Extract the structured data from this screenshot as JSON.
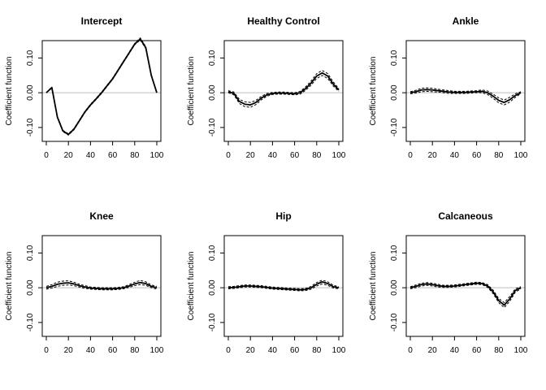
{
  "chart_data": [
    {
      "type": "line",
      "title": "Intercept",
      "xlabel": "",
      "ylabel": "Coefficient function",
      "xlim": [
        0,
        100
      ],
      "ylim": [
        -0.14,
        0.15
      ],
      "xticks": [
        "0",
        "20",
        "40",
        "60",
        "80",
        "100"
      ],
      "yticks": [
        "-0.10",
        "0.00",
        "0.10"
      ],
      "reference_line": 0,
      "x": [
        0,
        5,
        10,
        15,
        20,
        25,
        30,
        35,
        40,
        45,
        50,
        55,
        60,
        65,
        70,
        75,
        80,
        85,
        90,
        95,
        100
      ],
      "series": [
        {
          "values": [
            0.0,
            0.015,
            -0.07,
            -0.11,
            -0.12,
            -0.105,
            -0.08,
            -0.055,
            -0.035,
            -0.018,
            0.0,
            0.02,
            0.04,
            0.065,
            0.09,
            0.115,
            0.14,
            0.155,
            0.13,
            0.05,
            0.0
          ]
        },
        {
          "values": [
            0.0,
            0.013,
            -0.072,
            -0.112,
            -0.122,
            -0.107,
            -0.082,
            -0.057,
            -0.037,
            -0.02,
            -0.002,
            0.018,
            0.038,
            0.063,
            0.088,
            0.113,
            0.138,
            0.152,
            0.127,
            0.048,
            -0.002
          ]
        },
        {
          "values": [
            0.0,
            0.017,
            -0.068,
            -0.108,
            -0.118,
            -0.103,
            -0.078,
            -0.053,
            -0.033,
            -0.016,
            0.002,
            0.022,
            0.042,
            0.067,
            0.092,
            0.117,
            0.142,
            0.158,
            0.133,
            0.052,
            0.002
          ]
        }
      ]
    },
    {
      "type": "line",
      "title": "Healthy Control",
      "xlabel": "",
      "ylabel": "Coefficient function",
      "xlim": [
        0,
        100
      ],
      "ylim": [
        -0.14,
        0.15
      ],
      "xticks": [
        "0",
        "20",
        "40",
        "60",
        "80",
        "100"
      ],
      "yticks": [
        "-0.10",
        "0.00",
        "0.10"
      ],
      "reference_line": 0,
      "x": [
        0,
        5,
        10,
        15,
        20,
        25,
        30,
        35,
        40,
        45,
        50,
        55,
        60,
        65,
        70,
        75,
        80,
        85,
        90,
        95,
        100
      ],
      "series": [
        {
          "values": [
            0.003,
            -0.002,
            -0.025,
            -0.033,
            -0.035,
            -0.028,
            -0.015,
            -0.006,
            -0.002,
            -0.001,
            -0.001,
            -0.002,
            -0.003,
            0.0,
            0.012,
            0.028,
            0.048,
            0.057,
            0.048,
            0.025,
            0.008
          ]
        },
        {
          "values": [
            0.0,
            -0.006,
            -0.031,
            -0.04,
            -0.042,
            -0.034,
            -0.02,
            -0.01,
            -0.005,
            -0.004,
            -0.004,
            -0.005,
            -0.006,
            -0.004,
            0.007,
            0.022,
            0.041,
            0.05,
            0.041,
            0.019,
            0.004
          ]
        },
        {
          "values": [
            0.006,
            0.002,
            -0.019,
            -0.026,
            -0.028,
            -0.022,
            -0.01,
            -0.002,
            0.001,
            0.002,
            0.002,
            0.001,
            0.0,
            0.004,
            0.017,
            0.034,
            0.055,
            0.064,
            0.055,
            0.031,
            0.012
          ]
        }
      ]
    },
    {
      "type": "line",
      "title": "Ankle",
      "xlabel": "",
      "ylabel": "Coefficient function",
      "xlim": [
        0,
        100
      ],
      "ylim": [
        -0.14,
        0.15
      ],
      "xticks": [
        "0",
        "20",
        "40",
        "60",
        "80",
        "100"
      ],
      "yticks": [
        "-0.10",
        "0.00",
        "0.10"
      ],
      "reference_line": 0,
      "x": [
        0,
        5,
        10,
        15,
        20,
        25,
        30,
        35,
        40,
        45,
        50,
        55,
        60,
        65,
        70,
        75,
        80,
        85,
        90,
        95,
        100
      ],
      "series": [
        {
          "values": [
            0.0,
            0.003,
            0.008,
            0.009,
            0.008,
            0.006,
            0.004,
            0.002,
            0.001,
            0.001,
            0.001,
            0.002,
            0.003,
            0.004,
            0.0,
            -0.01,
            -0.022,
            -0.028,
            -0.02,
            -0.008,
            0.0
          ]
        },
        {
          "values": [
            -0.003,
            -0.001,
            0.003,
            0.004,
            0.003,
            0.002,
            0.0,
            -0.002,
            -0.002,
            -0.002,
            -0.002,
            -0.001,
            0.0,
            0.0,
            -0.005,
            -0.016,
            -0.029,
            -0.035,
            -0.027,
            -0.013,
            -0.003
          ]
        },
        {
          "values": [
            0.003,
            0.007,
            0.013,
            0.014,
            0.013,
            0.01,
            0.008,
            0.006,
            0.004,
            0.004,
            0.004,
            0.005,
            0.006,
            0.008,
            0.005,
            -0.004,
            -0.015,
            -0.021,
            -0.013,
            -0.003,
            0.003
          ]
        }
      ]
    },
    {
      "type": "line",
      "title": "Knee",
      "xlabel": "",
      "ylabel": "Coefficient function",
      "xlim": [
        0,
        100
      ],
      "ylim": [
        -0.14,
        0.15
      ],
      "xticks": [
        "0",
        "20",
        "40",
        "60",
        "80",
        "100"
      ],
      "yticks": [
        "-0.10",
        "0.00",
        "0.10"
      ],
      "reference_line": 0,
      "x": [
        0,
        5,
        10,
        15,
        20,
        25,
        30,
        35,
        40,
        45,
        50,
        55,
        60,
        65,
        70,
        75,
        80,
        85,
        90,
        95,
        100
      ],
      "series": [
        {
          "values": [
            0.0,
            0.004,
            0.01,
            0.013,
            0.014,
            0.011,
            0.006,
            0.002,
            -0.001,
            -0.002,
            -0.003,
            -0.003,
            -0.003,
            -0.002,
            0.0,
            0.005,
            0.011,
            0.015,
            0.012,
            0.004,
            0.0
          ]
        },
        {
          "values": [
            -0.004,
            -0.001,
            0.004,
            0.007,
            0.008,
            0.006,
            0.002,
            -0.002,
            -0.004,
            -0.005,
            -0.006,
            -0.006,
            -0.006,
            -0.005,
            -0.003,
            0.001,
            0.006,
            0.009,
            0.007,
            0.0,
            -0.004
          ]
        },
        {
          "values": [
            0.004,
            0.009,
            0.016,
            0.019,
            0.02,
            0.016,
            0.01,
            0.006,
            0.002,
            0.001,
            0.0,
            0.0,
            0.0,
            0.001,
            0.003,
            0.009,
            0.016,
            0.021,
            0.017,
            0.008,
            0.004
          ]
        }
      ]
    },
    {
      "type": "line",
      "title": "Hip",
      "xlabel": "",
      "ylabel": "Coefficient function",
      "xlim": [
        0,
        100
      ],
      "ylim": [
        -0.14,
        0.15
      ],
      "xticks": [
        "0",
        "20",
        "40",
        "60",
        "80",
        "100"
      ],
      "yticks": [
        "-0.10",
        "0.00",
        "0.10"
      ],
      "reference_line": 0,
      "x": [
        0,
        5,
        10,
        15,
        20,
        25,
        30,
        35,
        40,
        45,
        50,
        55,
        60,
        65,
        70,
        75,
        80,
        85,
        90,
        95,
        100
      ],
      "series": [
        {
          "values": [
            0.0,
            0.001,
            0.003,
            0.005,
            0.005,
            0.004,
            0.003,
            0.001,
            -0.001,
            -0.002,
            -0.003,
            -0.004,
            -0.005,
            -0.006,
            -0.005,
            0.0,
            0.01,
            0.017,
            0.012,
            0.003,
            0.0
          ]
        },
        {
          "values": [
            -0.003,
            -0.002,
            0.0,
            0.002,
            0.002,
            0.001,
            0.0,
            -0.002,
            -0.004,
            -0.005,
            -0.006,
            -0.007,
            -0.008,
            -0.009,
            -0.008,
            -0.004,
            0.005,
            0.011,
            0.007,
            -0.001,
            -0.003
          ]
        },
        {
          "values": [
            0.003,
            0.004,
            0.006,
            0.008,
            0.008,
            0.007,
            0.006,
            0.004,
            0.002,
            0.001,
            0.0,
            -0.001,
            -0.002,
            -0.003,
            -0.002,
            0.004,
            0.015,
            0.022,
            0.017,
            0.007,
            0.003
          ]
        }
      ]
    },
    {
      "type": "line",
      "title": "Calcaneous",
      "xlabel": "",
      "ylabel": "Coefficient function",
      "xlim": [
        0,
        100
      ],
      "ylim": [
        -0.14,
        0.15
      ],
      "xticks": [
        "0",
        "20",
        "40",
        "60",
        "80",
        "100"
      ],
      "yticks": [
        "-0.10",
        "0.00",
        "0.10"
      ],
      "reference_line": 0,
      "x": [
        0,
        5,
        10,
        15,
        20,
        25,
        30,
        35,
        40,
        45,
        50,
        55,
        60,
        65,
        70,
        75,
        80,
        85,
        90,
        95,
        100
      ],
      "series": [
        {
          "values": [
            0.0,
            0.004,
            0.009,
            0.011,
            0.009,
            0.006,
            0.004,
            0.004,
            0.005,
            0.007,
            0.009,
            0.011,
            0.013,
            0.012,
            0.005,
            -0.012,
            -0.037,
            -0.05,
            -0.032,
            -0.008,
            0.0
          ]
        },
        {
          "values": [
            -0.003,
            0.0,
            0.005,
            0.007,
            0.005,
            0.002,
            0.001,
            0.001,
            0.002,
            0.004,
            0.006,
            0.008,
            0.01,
            0.009,
            0.001,
            -0.017,
            -0.043,
            -0.057,
            -0.039,
            -0.013,
            -0.003
          ]
        },
        {
          "values": [
            0.003,
            0.008,
            0.013,
            0.015,
            0.013,
            0.01,
            0.007,
            0.007,
            0.008,
            0.01,
            0.012,
            0.014,
            0.016,
            0.015,
            0.009,
            -0.007,
            -0.031,
            -0.043,
            -0.025,
            -0.003,
            0.003
          ]
        }
      ]
    }
  ]
}
